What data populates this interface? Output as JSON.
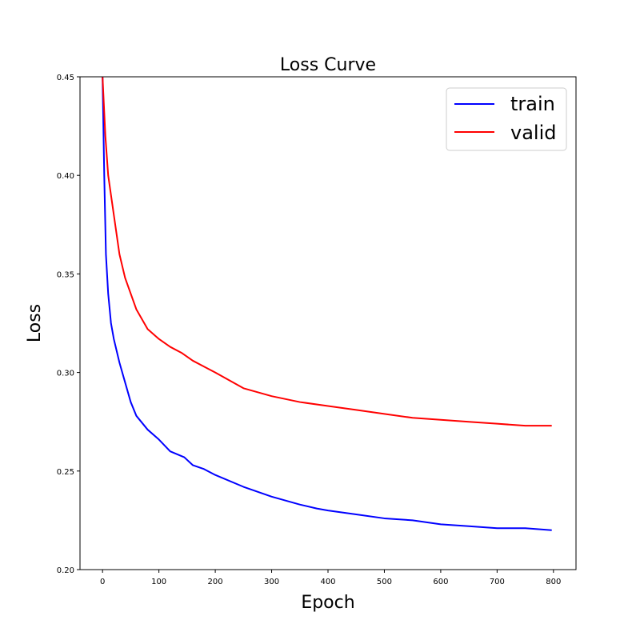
{
  "chart_data": {
    "type": "line",
    "title": "Loss Curve",
    "xlabel": "Epoch",
    "ylabel": "Loss",
    "xlim": [
      -40,
      840
    ],
    "ylim": [
      0.2,
      0.45
    ],
    "xticks": [
      0,
      100,
      200,
      300,
      400,
      500,
      600,
      700,
      800
    ],
    "yticks": [
      "0.20",
      "0.25",
      "0.30",
      "0.35",
      "0.40",
      "0.45"
    ],
    "grid": false,
    "legend": "top-right",
    "series": [
      {
        "name": "train",
        "color": "#0000ff",
        "x": [
          0,
          3,
          6,
          10,
          15,
          20,
          30,
          40,
          50,
          60,
          80,
          100,
          120,
          145,
          160,
          180,
          200,
          250,
          300,
          350,
          380,
          400,
          450,
          500,
          550,
          600,
          650,
          700,
          750,
          797
        ],
        "y": [
          0.45,
          0.4,
          0.36,
          0.34,
          0.325,
          0.317,
          0.305,
          0.295,
          0.285,
          0.278,
          0.271,
          0.266,
          0.26,
          0.257,
          0.253,
          0.251,
          0.248,
          0.242,
          0.237,
          0.233,
          0.231,
          0.23,
          0.228,
          0.226,
          0.225,
          0.223,
          0.222,
          0.221,
          0.221,
          0.22
        ]
      },
      {
        "name": "valid",
        "color": "#ff0000",
        "x": [
          0,
          5,
          10,
          15,
          20,
          30,
          40,
          50,
          60,
          80,
          100,
          120,
          140,
          160,
          180,
          200,
          250,
          300,
          350,
          400,
          450,
          500,
          550,
          600,
          650,
          700,
          750,
          797
        ],
        "y": [
          0.45,
          0.42,
          0.4,
          0.39,
          0.38,
          0.36,
          0.348,
          0.34,
          0.332,
          0.322,
          0.317,
          0.313,
          0.31,
          0.306,
          0.303,
          0.3,
          0.292,
          0.288,
          0.285,
          0.283,
          0.281,
          0.279,
          0.277,
          0.276,
          0.275,
          0.274,
          0.273,
          0.273
        ]
      }
    ]
  }
}
